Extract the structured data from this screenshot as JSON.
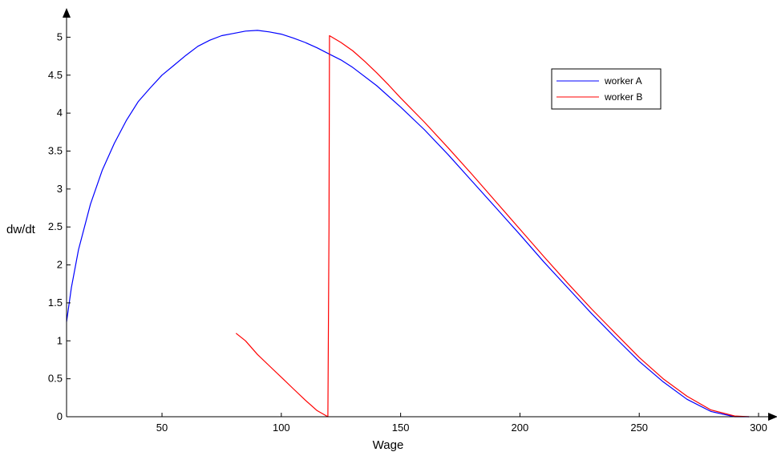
{
  "chart_data": {
    "type": "line",
    "title": "",
    "xlabel": "Wage",
    "ylabel": "dw/dt",
    "xlim": [
      10,
      300
    ],
    "ylim": [
      0,
      5.3
    ],
    "xticks": [
      50,
      100,
      150,
      200,
      250,
      300
    ],
    "yticks": [
      0,
      0.5,
      1,
      1.5,
      2,
      2.5,
      3,
      3.5,
      4,
      4.5,
      5
    ],
    "xtick_labels": [
      "50",
      "100",
      "150",
      "200",
      "250",
      "300"
    ],
    "ytick_labels": [
      "0",
      "0.5",
      "1",
      "1.5",
      "2",
      "2.5",
      "3",
      "3.5",
      "4",
      "4.5",
      "5"
    ],
    "grid": false,
    "legend_position": "top-right",
    "series": [
      {
        "name": "worker A",
        "color": "#0000ff",
        "x": [
          10,
          12,
          15,
          20,
          25,
          30,
          35,
          40,
          45,
          50,
          55,
          60,
          65,
          70,
          75,
          80,
          85,
          90,
          95,
          100,
          105,
          110,
          115,
          120,
          125,
          130,
          140,
          150,
          160,
          170,
          180,
          190,
          200,
          210,
          220,
          230,
          240,
          250,
          260,
          270,
          280,
          290,
          296
        ],
        "y": [
          1.25,
          1.7,
          2.2,
          2.8,
          3.25,
          3.6,
          3.9,
          4.15,
          4.33,
          4.5,
          4.63,
          4.76,
          4.88,
          4.96,
          5.02,
          5.05,
          5.08,
          5.09,
          5.07,
          5.04,
          4.99,
          4.93,
          4.86,
          4.78,
          4.7,
          4.6,
          4.36,
          4.08,
          3.78,
          3.45,
          3.1,
          2.75,
          2.4,
          2.04,
          1.7,
          1.36,
          1.04,
          0.73,
          0.46,
          0.23,
          0.07,
          0.0,
          0.0
        ]
      },
      {
        "name": "worker B",
        "color": "#ff0000",
        "x": [
          81,
          85,
          90,
          95,
          100,
          105,
          110,
          115,
          119.5,
          120,
          120.2,
          125,
          130,
          135,
          140,
          145,
          150,
          160,
          170,
          180,
          190,
          200,
          210,
          220,
          230,
          240,
          250,
          260,
          270,
          280,
          290,
          296
        ],
        "y": [
          1.1,
          1.0,
          0.82,
          0.67,
          0.52,
          0.37,
          0.22,
          0.08,
          0.0,
          2.5,
          5.02,
          4.93,
          4.82,
          4.68,
          4.53,
          4.37,
          4.2,
          3.88,
          3.54,
          3.19,
          2.83,
          2.47,
          2.11,
          1.76,
          1.42,
          1.1,
          0.78,
          0.5,
          0.27,
          0.09,
          0.01,
          0.0
        ]
      }
    ]
  }
}
